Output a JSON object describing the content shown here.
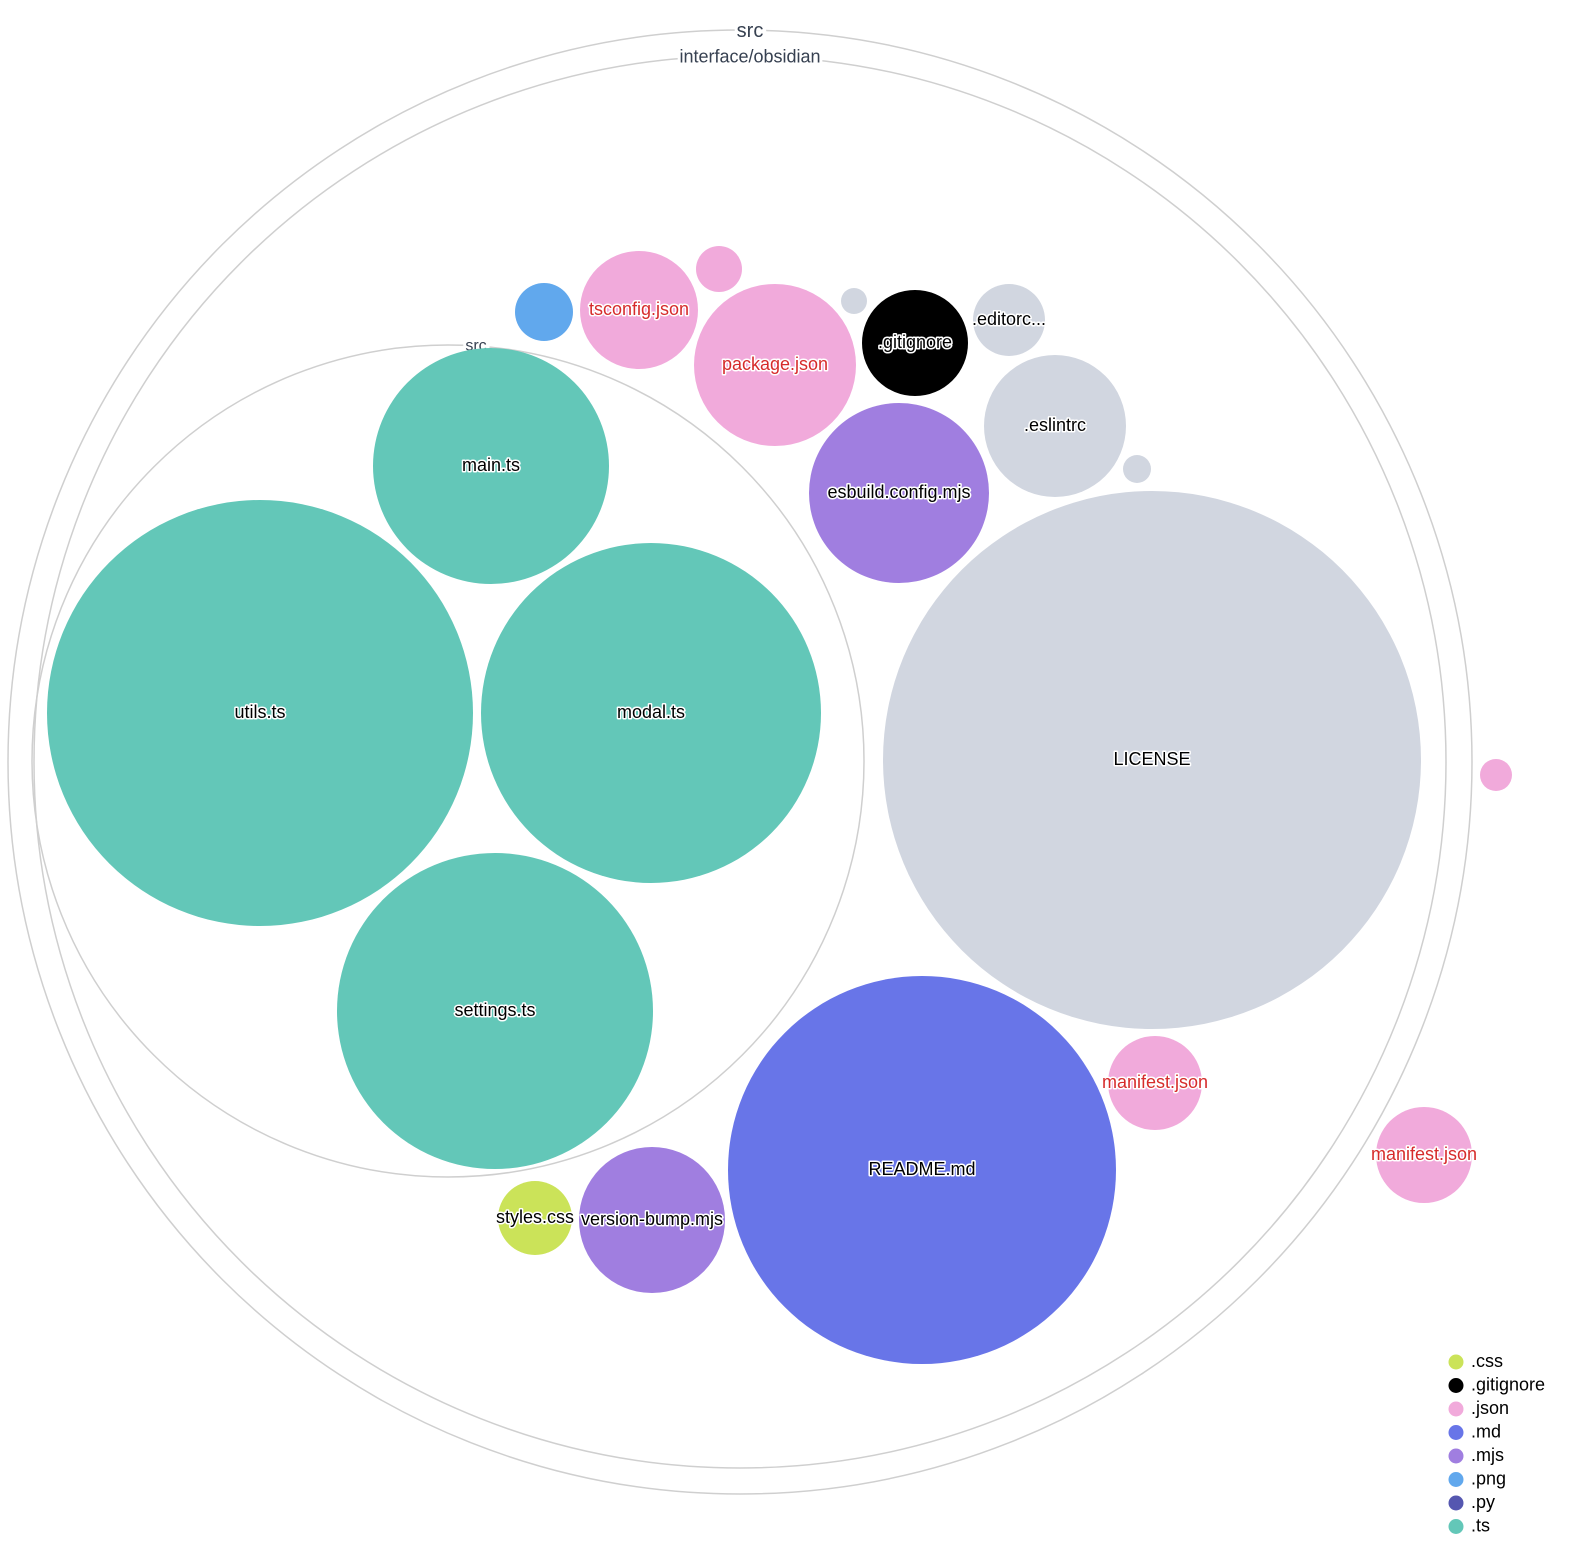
{
  "colors": {
    ".css": "#cbe359",
    ".gitignore": "#000000",
    ".json": "#f1aadb",
    ".md": "#6875e8",
    ".mjs": "#a07ee0",
    ".png": "#61a8ed",
    ".py": "#5557b0",
    ".ts": "#63c7b8",
    "other": "#d1d6e0"
  },
  "folders": [
    {
      "name": "src"
    },
    {
      "name": "interface/obsidian"
    },
    {
      "name": "src"
    }
  ],
  "files": [
    {
      "name": "main.ts",
      "ext": ".ts",
      "label": "main.ts"
    },
    {
      "name": "utils.ts",
      "ext": ".ts",
      "label": "utils.ts"
    },
    {
      "name": "modal.ts",
      "ext": ".ts",
      "label": "modal.ts"
    },
    {
      "name": "settings.ts",
      "ext": ".ts",
      "label": "settings.ts"
    },
    {
      "name": "LICENSE",
      "ext": "other",
      "label": "LICENSE"
    },
    {
      "name": "README.md",
      "ext": ".md",
      "label": "README.md"
    },
    {
      "name": "manifest.json",
      "ext": ".json",
      "label": "manifest.json"
    },
    {
      "name": "manifest.json",
      "ext": ".json",
      "label": "manifest.json"
    },
    {
      "name": "",
      "ext": ".json",
      "label": ""
    },
    {
      "name": "version-bump.mjs",
      "ext": ".mjs",
      "label": "version-bump.mjs"
    },
    {
      "name": "styles.css",
      "ext": ".css",
      "label": "styles.css"
    },
    {
      "name": "esbuild.config.mjs",
      "ext": ".mjs",
      "label": "esbuild.config.mjs"
    },
    {
      "name": ".eslintrc",
      "ext": "other",
      "label": ".eslintrc"
    },
    {
      "name": "",
      "ext": "other",
      "label": ""
    },
    {
      "name": ".editorconfig",
      "ext": "other",
      "label": ".editorc..."
    },
    {
      "name": ".gitignore",
      "ext": ".gitignore",
      "label": ".gitignore"
    },
    {
      "name": "",
      "ext": "other",
      "label": ""
    },
    {
      "name": "package.json",
      "ext": ".json",
      "label": "package.json"
    },
    {
      "name": "",
      "ext": ".json",
      "label": ""
    },
    {
      "name": "tsconfig.json",
      "ext": ".json",
      "label": "tsconfig.json"
    },
    {
      "name": "",
      "ext": ".png",
      "label": ""
    }
  ],
  "legend": [
    ".css",
    ".gitignore",
    ".json",
    ".md",
    ".mjs",
    ".png",
    ".py",
    ".ts"
  ]
}
